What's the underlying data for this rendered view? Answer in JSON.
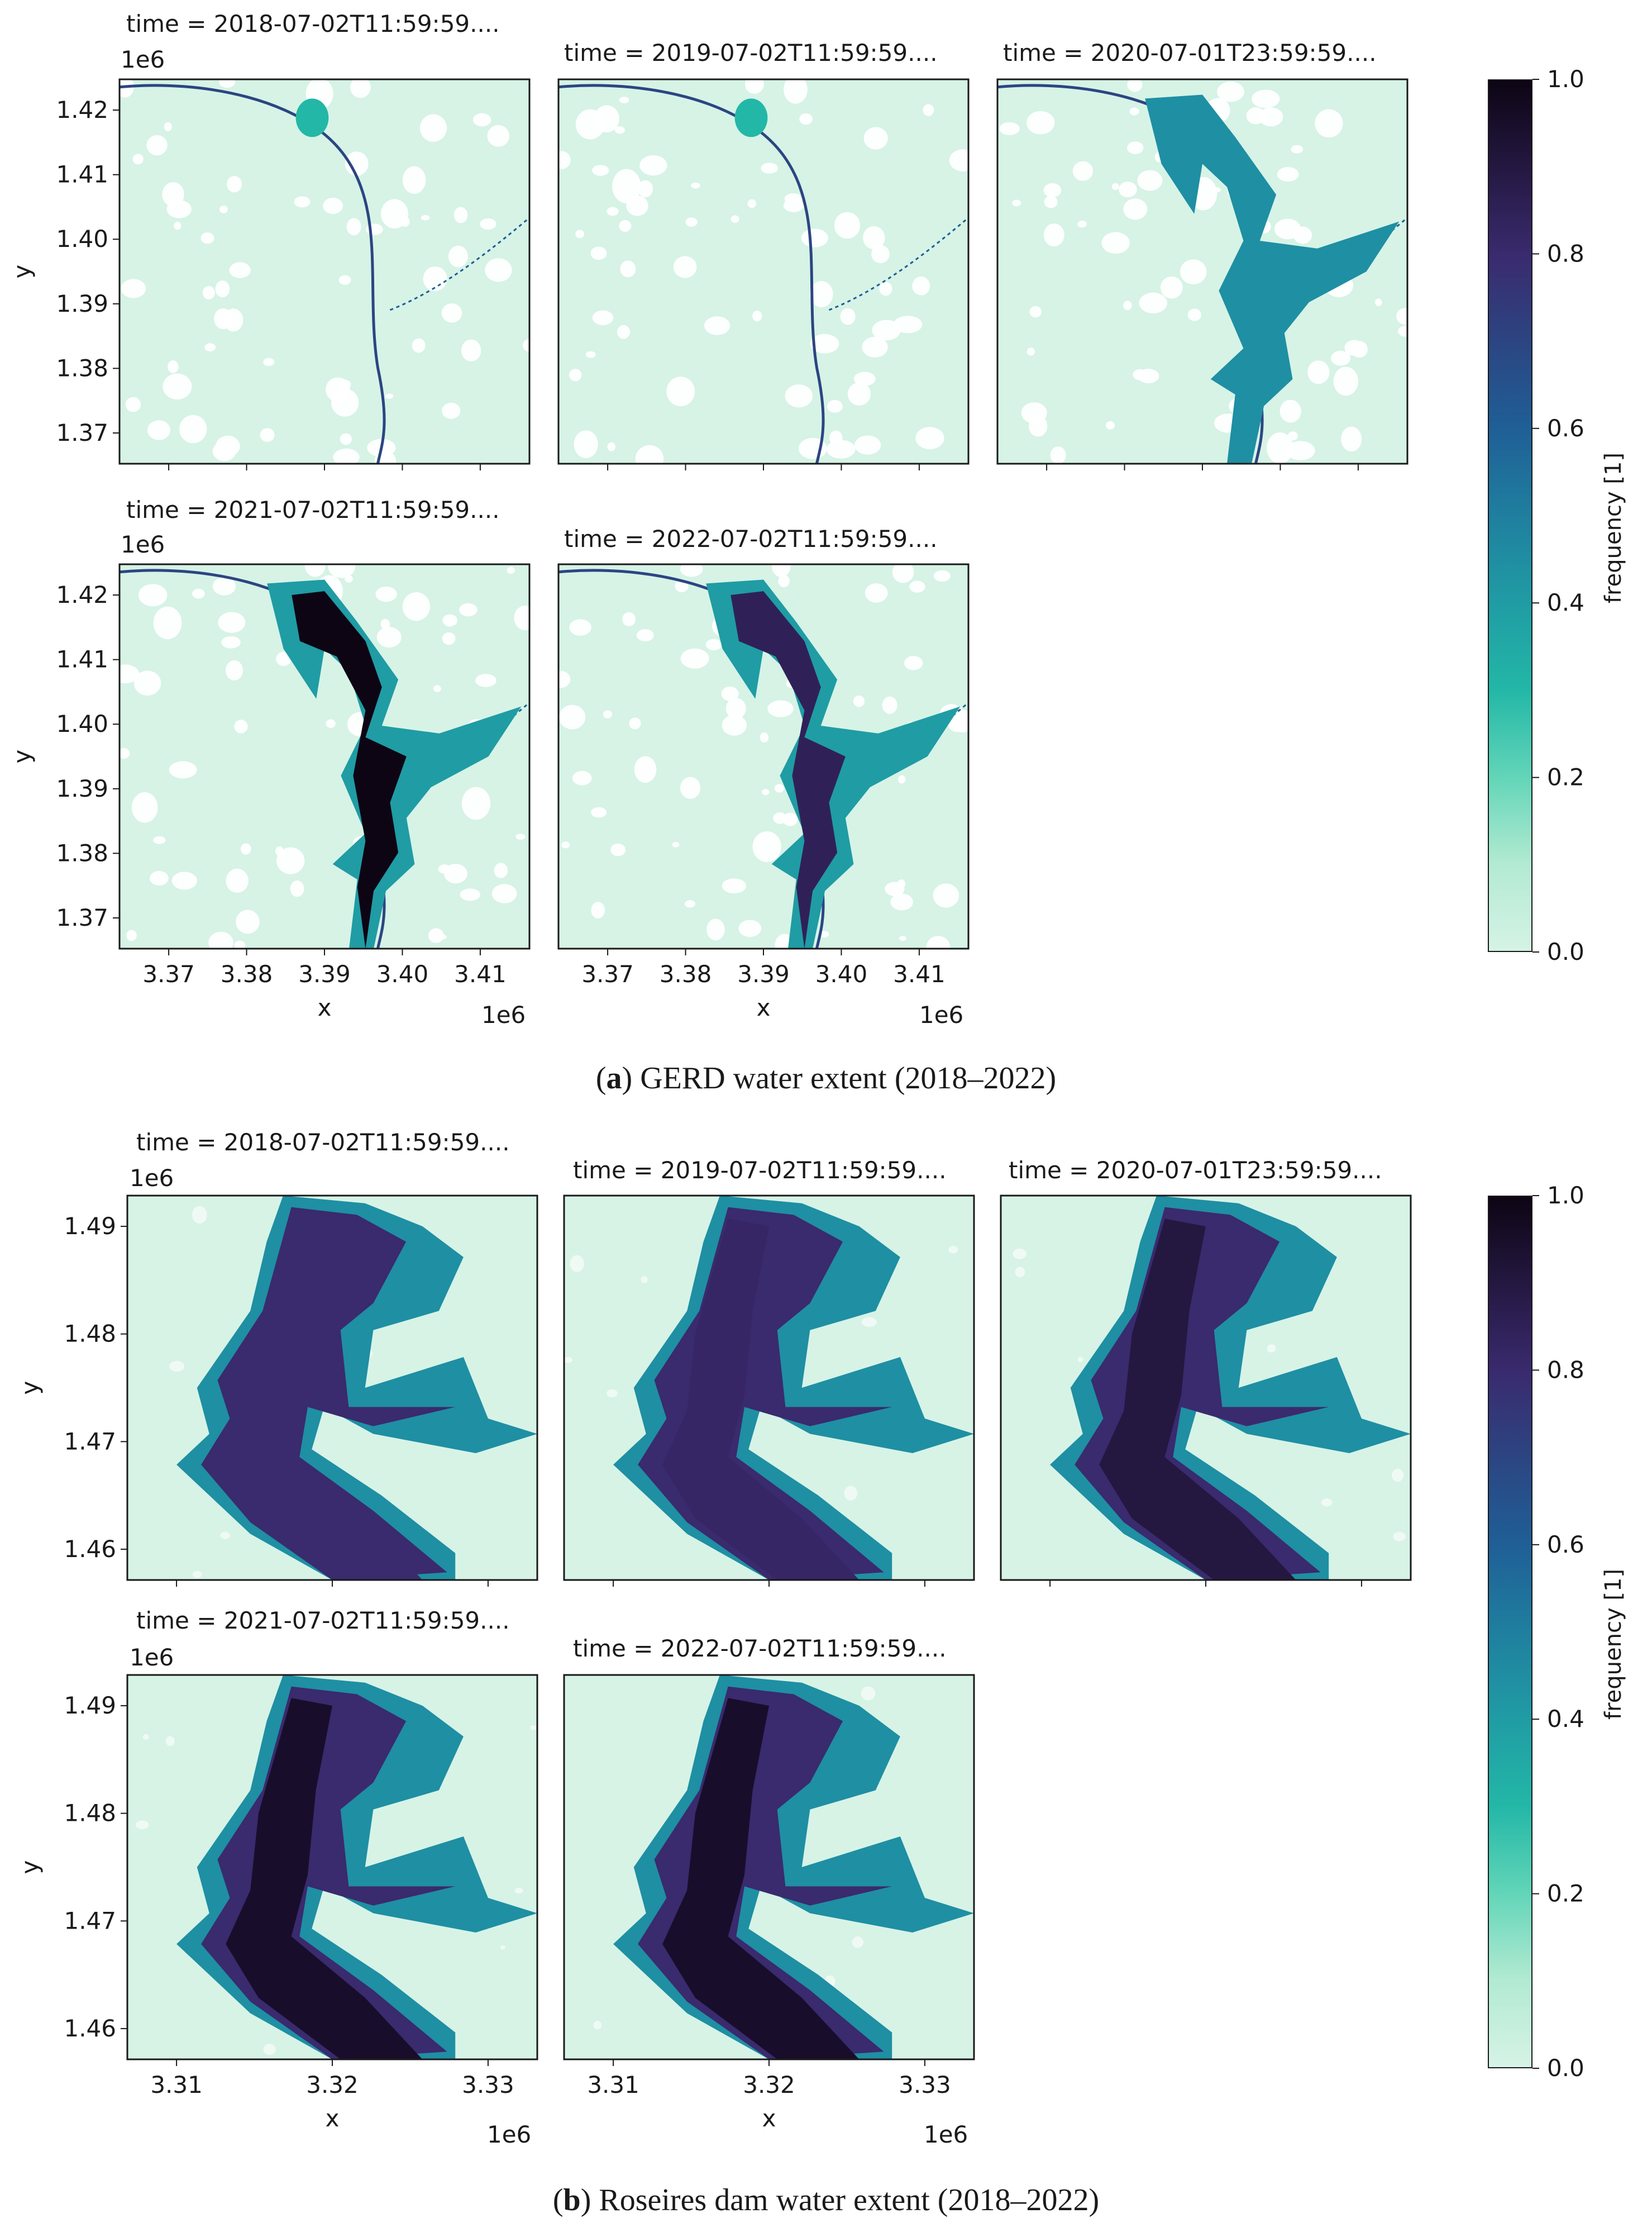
{
  "figure_a": {
    "caption_letter": "a",
    "caption_text": " GERD water extent (2018–2022)",
    "panels": [
      {
        "title": "time = 2018-07-02T11:59:59....",
        "fill": 0.05
      },
      {
        "title": "time = 2019-07-02T11:59:59....",
        "fill": 0.05
      },
      {
        "title": "time = 2020-07-01T23:59:59....",
        "fill": 0.45
      },
      {
        "title": "time = 2021-07-02T11:59:59....",
        "fill": 1.0
      },
      {
        "title": "time = 2022-07-02T11:59:59....",
        "fill": 0.85
      }
    ],
    "y_multiplier": "1e6",
    "x_multiplier": "1e6",
    "y_ticks": [
      "1.42",
      "1.41",
      "1.40",
      "1.39",
      "1.38",
      "1.37"
    ],
    "x_ticks": [
      "3.37",
      "3.38",
      "3.39",
      "3.40",
      "3.41"
    ],
    "xlabel": "x",
    "ylabel": "y"
  },
  "figure_b": {
    "caption_letter": "b",
    "caption_text": " Roseires dam water extent (2018–2022)",
    "panels": [
      {
        "title": "time = 2018-07-02T11:59:59....",
        "fill": 0.8
      },
      {
        "title": "time = 2019-07-02T11:59:59....",
        "fill": 0.82
      },
      {
        "title": "time = 2020-07-01T23:59:59....",
        "fill": 0.9
      },
      {
        "title": "time = 2021-07-02T11:59:59....",
        "fill": 0.95
      },
      {
        "title": "time = 2022-07-02T11:59:59....",
        "fill": 0.95
      }
    ],
    "y_multiplier": "1e6",
    "x_multiplier": "1e6",
    "y_ticks": [
      "1.49",
      "1.48",
      "1.47",
      "1.46"
    ],
    "x_ticks": [
      "3.31",
      "3.32",
      "3.33"
    ],
    "xlabel": "x",
    "ylabel": "y"
  },
  "colorbar": {
    "label": "frequency [1]",
    "ticks": [
      "1.0",
      "0.8",
      "0.6",
      "0.4",
      "0.2",
      "0.0"
    ],
    "colors": [
      "#0d0514",
      "#3a2a6e",
      "#1f5f96",
      "#1f8fa3",
      "#24c4a8",
      "#d6f3e6"
    ]
  }
}
